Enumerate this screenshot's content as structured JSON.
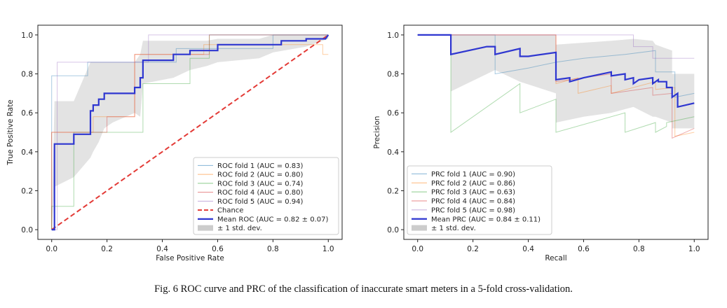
{
  "caption": "Fig. 6 ROC curve and PRC of the classification of inaccurate smart meters in a 5-fold cross-validation.",
  "chart_data": [
    {
      "type": "line",
      "name": "roc",
      "title": "",
      "xlabel": "False Positive Rate",
      "ylabel": "True Positive Rate",
      "xlim": [
        -0.05,
        1.05
      ],
      "ylim": [
        -0.05,
        1.05
      ],
      "xticks": [
        0.0,
        0.2,
        0.4,
        0.6,
        0.8,
        1.0
      ],
      "yticks": [
        0.0,
        0.2,
        0.4,
        0.6,
        0.8,
        1.0
      ],
      "tick_labels": [
        "0.0",
        "0.2",
        "0.4",
        "0.6",
        "0.8",
        "1.0"
      ],
      "legend_position": "lower-right",
      "series": [
        {
          "name": "ROC fold 1 (AUC = 0.83)",
          "color": "#1f77b4",
          "style": "thin",
          "x": [
            0,
            0,
            0.13,
            0.13,
            0.45,
            0.45,
            0.8,
            0.8,
            1.0
          ],
          "y": [
            0,
            0.79,
            0.79,
            0.86,
            0.86,
            0.93,
            0.93,
            1.0,
            1.0
          ]
        },
        {
          "name": "ROC fold 2 (AUC = 0.80)",
          "color": "#ff7f0e",
          "style": "thin",
          "x": [
            0,
            0,
            0.15,
            0.15,
            0.22,
            0.22,
            0.3,
            0.3,
            0.55,
            0.55,
            0.98,
            0.98,
            1.0
          ],
          "y": [
            0,
            0.5,
            0.5,
            0.58,
            0.58,
            0.58,
            0.58,
            0.9,
            0.9,
            0.95,
            0.95,
            0.9,
            0.9
          ]
        },
        {
          "name": "ROC fold 3 (AUC = 0.74)",
          "color": "#2ca02c",
          "style": "thin",
          "x": [
            0,
            0,
            0.08,
            0.08,
            0.16,
            0.16,
            0.33,
            0.33,
            0.5,
            0.5,
            0.57,
            0.57,
            1.0
          ],
          "y": [
            0,
            0.12,
            0.12,
            0.5,
            0.5,
            0.5,
            0.5,
            0.75,
            0.75,
            0.88,
            0.88,
            1.0,
            1.0
          ]
        },
        {
          "name": "ROC fold 4 (AUC = 0.80)",
          "color": "#d62728",
          "style": "thin",
          "x": [
            0,
            0,
            0.2,
            0.2,
            0.3,
            0.3,
            0.5,
            0.5,
            0.57,
            0.57,
            1.0
          ],
          "y": [
            0,
            0.5,
            0.5,
            0.58,
            0.58,
            0.9,
            0.9,
            0.9,
            0.9,
            1.0,
            1.0
          ]
        },
        {
          "name": "ROC fold 5 (AUC = 0.94)",
          "color": "#9467bd",
          "style": "thin",
          "x": [
            0,
            0.02,
            0.02,
            0.14,
            0.14,
            0.35,
            0.35,
            1.0
          ],
          "y": [
            0,
            0.0,
            0.86,
            0.86,
            0.86,
            0.86,
            1.0,
            1.0
          ]
        },
        {
          "name": "Chance",
          "color": "#e33a36",
          "style": "dashed",
          "x": [
            0,
            1
          ],
          "y": [
            0,
            1
          ]
        },
        {
          "name": "Mean ROC (AUC = 0.82 ± 0.07)",
          "color": "#2e36d0",
          "style": "bold",
          "x": [
            0,
            0.01,
            0.01,
            0.08,
            0.08,
            0.14,
            0.14,
            0.15,
            0.15,
            0.17,
            0.17,
            0.19,
            0.19,
            0.21,
            0.21,
            0.22,
            0.22,
            0.3,
            0.3,
            0.32,
            0.32,
            0.33,
            0.33,
            0.44,
            0.44,
            0.5,
            0.5,
            0.56,
            0.56,
            0.6,
            0.6,
            0.75,
            0.75,
            0.83,
            0.83,
            0.92,
            0.92,
            0.99,
            1.0
          ],
          "y": [
            0,
            0.0,
            0.44,
            0.44,
            0.49,
            0.49,
            0.61,
            0.61,
            0.64,
            0.64,
            0.67,
            0.67,
            0.7,
            0.7,
            0.7,
            0.7,
            0.7,
            0.7,
            0.73,
            0.73,
            0.78,
            0.78,
            0.87,
            0.87,
            0.9,
            0.9,
            0.92,
            0.92,
            0.92,
            0.92,
            0.95,
            0.95,
            0.95,
            0.95,
            0.97,
            0.97,
            0.98,
            0.98,
            1.0
          ]
        }
      ],
      "band": {
        "name": "± 1 std. dev.",
        "color": "#cccccc",
        "x": [
          0,
          0.01,
          0.08,
          0.14,
          0.15,
          0.17,
          0.19,
          0.22,
          0.3,
          0.32,
          0.33,
          0.44,
          0.5,
          0.56,
          0.6,
          0.75,
          0.8,
          0.92,
          1.0
        ],
        "upper": [
          0.01,
          0.66,
          0.66,
          0.86,
          0.86,
          0.86,
          0.86,
          0.86,
          0.86,
          0.9,
          0.97,
          0.97,
          0.97,
          0.97,
          0.98,
          0.98,
          1.0,
          1.0,
          1.0
        ],
        "lower": [
          0.0,
          0.22,
          0.27,
          0.37,
          0.4,
          0.45,
          0.52,
          0.55,
          0.6,
          0.58,
          0.75,
          0.78,
          0.82,
          0.84,
          0.86,
          0.88,
          0.91,
          0.94,
          0.98
        ]
      }
    },
    {
      "type": "line",
      "name": "prc",
      "title": "",
      "xlabel": "Recall",
      "ylabel": "Precision",
      "xlim": [
        -0.05,
        1.05
      ],
      "ylim": [
        -0.05,
        1.05
      ],
      "xticks": [
        0.0,
        0.2,
        0.4,
        0.6,
        0.8,
        1.0
      ],
      "yticks": [
        0.0,
        0.2,
        0.4,
        0.6,
        0.8,
        1.0
      ],
      "tick_labels": [
        "0.0",
        "0.2",
        "0.4",
        "0.6",
        "0.8",
        "1.0"
      ],
      "legend_position": "lower-left",
      "series": [
        {
          "name": "PRC fold 1 (AUC = 0.90)",
          "color": "#1f77b4",
          "style": "thin",
          "x": [
            0,
            0.28,
            0.28,
            0.4,
            0.5,
            0.6,
            0.75,
            0.86,
            0.86,
            0.93,
            0.93,
            1.0
          ],
          "y": [
            1.0,
            1.0,
            0.8,
            0.83,
            0.86,
            0.88,
            0.9,
            0.92,
            0.81,
            0.81,
            0.68,
            0.7
          ]
        },
        {
          "name": "PRC fold 2 (AUC = 0.86)",
          "color": "#ff7f0e",
          "style": "thin",
          "x": [
            0,
            0.5,
            0.5,
            0.58,
            0.58,
            0.7,
            0.7,
            0.86,
            0.86,
            0.93,
            0.93,
            1.0
          ],
          "y": [
            1.0,
            1.0,
            0.75,
            0.78,
            0.7,
            0.74,
            0.7,
            0.76,
            0.72,
            0.73,
            0.48,
            0.5
          ]
        },
        {
          "name": "PRC fold 3 (AUC = 0.63)",
          "color": "#2ca02c",
          "style": "thin",
          "x": [
            0,
            0.12,
            0.12,
            0.37,
            0.37,
            0.5,
            0.5,
            0.75,
            0.75,
            0.86,
            0.86,
            0.9,
            0.9,
            1.0
          ],
          "y": [
            1.0,
            1.0,
            0.5,
            0.75,
            0.6,
            0.67,
            0.5,
            0.6,
            0.5,
            0.55,
            0.5,
            0.53,
            0.55,
            0.58
          ]
        },
        {
          "name": "PRC fold 4 (AUC = 0.84)",
          "color": "#d62728",
          "style": "thin",
          "x": [
            0,
            0.5,
            0.5,
            0.7,
            0.7,
            0.85,
            0.85,
            0.92,
            0.92,
            1.0
          ],
          "y": [
            1.0,
            1.0,
            0.76,
            0.8,
            0.7,
            0.73,
            0.69,
            0.7,
            0.47,
            0.52
          ]
        },
        {
          "name": "PRC fold 5 (AUC = 0.98)",
          "color": "#9467bd",
          "style": "thin",
          "x": [
            0,
            0.78,
            0.78,
            0.85,
            0.85,
            1.0
          ],
          "y": [
            1.0,
            1.0,
            0.94,
            0.94,
            0.88,
            0.88
          ]
        },
        {
          "name": "Mean PRC (AUC = 0.84 ± 0.11)",
          "color": "#2e36d0",
          "style": "bold",
          "x": [
            0,
            0.12,
            0.12,
            0.25,
            0.28,
            0.28,
            0.37,
            0.37,
            0.4,
            0.5,
            0.5,
            0.55,
            0.55,
            0.6,
            0.7,
            0.7,
            0.75,
            0.75,
            0.78,
            0.78,
            0.8,
            0.8,
            0.85,
            0.85,
            0.87,
            0.87,
            0.9,
            0.9,
            0.92,
            0.92,
            0.94,
            0.94,
            1.0
          ],
          "y": [
            1.0,
            1.0,
            0.9,
            0.94,
            0.94,
            0.9,
            0.93,
            0.89,
            0.89,
            0.91,
            0.77,
            0.78,
            0.76,
            0.78,
            0.81,
            0.79,
            0.8,
            0.77,
            0.78,
            0.75,
            0.77,
            0.77,
            0.78,
            0.75,
            0.77,
            0.76,
            0.76,
            0.73,
            0.73,
            0.68,
            0.7,
            0.63,
            0.65
          ]
        }
      ],
      "band": {
        "name": "± 1 std. dev.",
        "color": "#cccccc",
        "x": [
          0,
          0.12,
          0.12,
          0.28,
          0.37,
          0.5,
          0.5,
          0.6,
          0.7,
          0.78,
          0.85,
          0.86,
          0.92,
          0.92,
          1.0
        ],
        "upper": [
          1.0,
          1.0,
          1.0,
          1.0,
          1.0,
          1.0,
          0.95,
          0.96,
          0.97,
          0.98,
          0.97,
          0.95,
          0.92,
          0.8,
          0.8
        ],
        "lower": [
          1.0,
          1.0,
          0.71,
          0.82,
          0.76,
          0.7,
          0.55,
          0.58,
          0.6,
          0.63,
          0.58,
          0.58,
          0.55,
          0.52,
          0.52
        ]
      }
    }
  ]
}
